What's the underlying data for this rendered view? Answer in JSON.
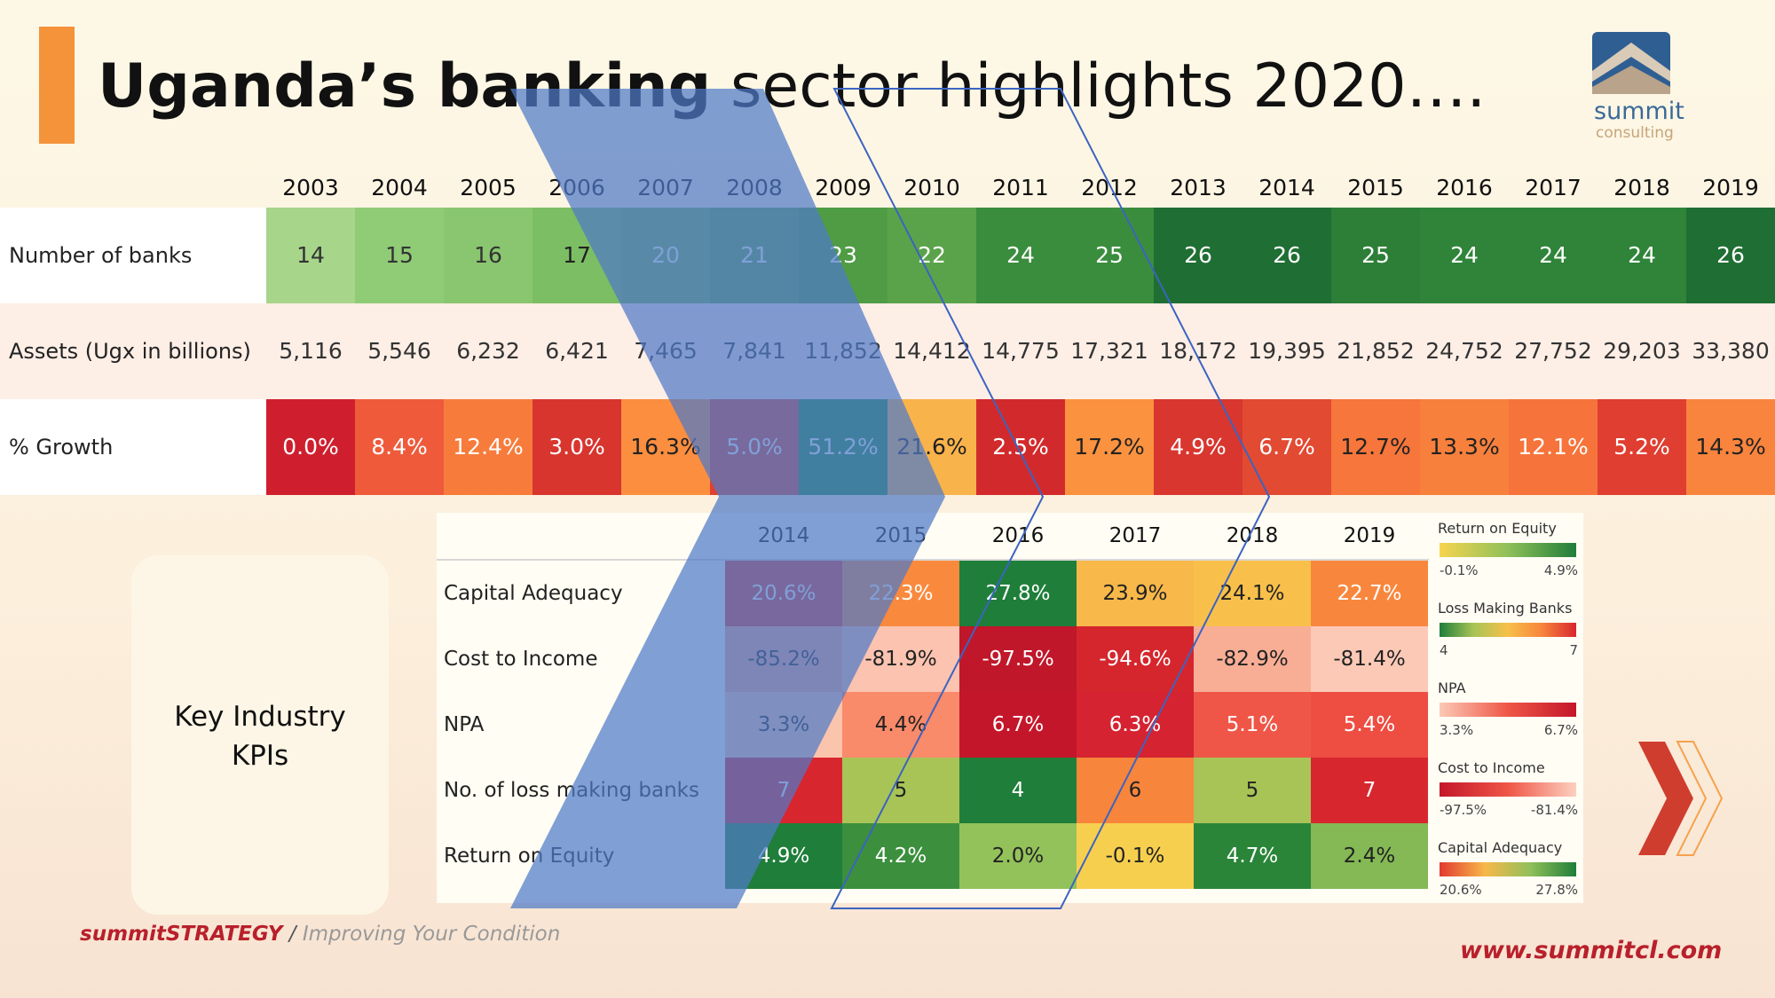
{
  "title": {
    "bold": "Uganda’s banking",
    "regular": " sector highlights 2020…."
  },
  "logo": {
    "word": "summit",
    "sub": "consulting"
  },
  "top_table": {
    "years": [
      "2003",
      "2004",
      "2005",
      "2006",
      "2007",
      "2008",
      "2009",
      "2010",
      "2011",
      "2012",
      "2013",
      "2014",
      "2015",
      "2016",
      "2017",
      "2018",
      "2019"
    ],
    "rows": [
      {
        "label": "Number of banks",
        "values": [
          "14",
          "15",
          "16",
          "17",
          "20",
          "21",
          "23",
          "22",
          "24",
          "25",
          "26",
          "26",
          "25",
          "24",
          "24",
          "24",
          "26"
        ],
        "colors": [
          "#a7d58a",
          "#90cb76",
          "#8ac66f",
          "#7cbe63",
          "#6fb257",
          "#5ea64d",
          "#4f9c45",
          "#5aa34a",
          "#3a8d3d",
          "#3a8d3d",
          "#1f6e33",
          "#1f6e33",
          "#2d7f38",
          "#2f8439",
          "#2f8439",
          "#2f8439",
          "#1f6e33"
        ],
        "text_colors": [
          "#333",
          "#333",
          "#333",
          "#222",
          "#fff",
          "#fff",
          "#fff",
          "#fff",
          "#fff",
          "#fff",
          "#fff",
          "#fff",
          "#fff",
          "#fff",
          "#fff",
          "#fff",
          "#fff"
        ]
      },
      {
        "label": "Assets (Ugx in billions)",
        "values": [
          "5,116",
          "5,546",
          "6,232",
          "6,421",
          "7,465",
          "7,841",
          "11,852",
          "14,412",
          "14,775",
          "17,321",
          "18,172",
          "19,395",
          "21,852",
          "24,752",
          "27,752",
          "29,203",
          "33,380"
        ]
      },
      {
        "label": "% Growth",
        "values": [
          "0.0%",
          "8.4%",
          "12.4%",
          "3.0%",
          "16.3%",
          "5.0%",
          "51.2%",
          "21.6%",
          "2.5%",
          "17.2%",
          "4.9%",
          "6.7%",
          "12.7%",
          "13.3%",
          "12.1%",
          "5.2%",
          "14.3%"
        ],
        "colors": [
          "#cf1f2e",
          "#ef5a3b",
          "#f77c3c",
          "#d8352f",
          "#fb8e3f",
          "#e0402f",
          "#1a8e3c",
          "#f9b34b",
          "#d22a2c",
          "#fa923f",
          "#d8362f",
          "#e24a32",
          "#f6763b",
          "#f7803c",
          "#f6743b",
          "#df3e30",
          "#f8843d"
        ],
        "text_colors": [
          "#fff",
          "#fff",
          "#fff",
          "#fff",
          "#222",
          "#fff",
          "#fff",
          "#222",
          "#fff",
          "#222",
          "#fff",
          "#fff",
          "#222",
          "#222",
          "#fff",
          "#fff",
          "#222"
        ]
      }
    ]
  },
  "kpi": {
    "years": [
      "2014",
      "2015",
      "2016",
      "2017",
      "2018",
      "2019"
    ],
    "rows": [
      {
        "label": "Capital Adequacy",
        "values": [
          "20.6%",
          "22.3%",
          "27.8%",
          "23.9%",
          "24.1%",
          "22.7%"
        ],
        "colors": [
          "#e13a2f",
          "#f98a3d",
          "#1f7e3a",
          "#f8b84a",
          "#f8c04b",
          "#f8873d"
        ],
        "text_colors": [
          "#fff",
          "#fff",
          "#fff",
          "#222",
          "#222",
          "#fff"
        ]
      },
      {
        "label": "Cost to Income",
        "values": [
          "-85.2%",
          "-81.9%",
          "-97.5%",
          "-94.6%",
          "-82.9%",
          "-81.4%"
        ],
        "colors": [
          "#f6a58c",
          "#fbc3b0",
          "#c0172a",
          "#d5262d",
          "#f8ae95",
          "#fcc9b7"
        ],
        "text_colors": [
          "#222",
          "#222",
          "#fff",
          "#fff",
          "#222",
          "#222"
        ]
      },
      {
        "label": "NPA",
        "values": [
          "3.3%",
          "4.4%",
          "6.7%",
          "6.3%",
          "5.1%",
          "5.4%"
        ],
        "colors": [
          "#fbc4ad",
          "#f98a6a",
          "#c4162a",
          "#d52331",
          "#ef5647",
          "#ee4d42"
        ],
        "text_colors": [
          "#222",
          "#222",
          "#fff",
          "#fff",
          "#fff",
          "#fff"
        ]
      },
      {
        "label": "No. of loss making banks",
        "values": [
          "7",
          "5",
          "4",
          "6",
          "5",
          "7"
        ],
        "colors": [
          "#d8262f",
          "#a8c457",
          "#1f7e3a",
          "#f7853c",
          "#a8c457",
          "#d8262f"
        ],
        "text_colors": [
          "#fff",
          "#222",
          "#fff",
          "#222",
          "#222",
          "#fff"
        ]
      },
      {
        "label": "Return on Equity",
        "values": [
          "4.9%",
          "4.2%",
          "2.0%",
          "-0.1%",
          "4.7%",
          "2.4%"
        ],
        "colors": [
          "#1f7e3a",
          "#3b8f3d",
          "#93c25b",
          "#f7cf4f",
          "#2a8539",
          "#84b955"
        ],
        "text_colors": [
          "#fff",
          "#fff",
          "#222",
          "#222",
          "#fff",
          "#222"
        ]
      }
    ]
  },
  "key_text": [
    "Key Industry",
    "KPIs"
  ],
  "legend": [
    {
      "title": "Return on Equity",
      "min": "-0.1%",
      "max": "4.9%"
    },
    {
      "title": "Loss Making Banks",
      "min": "4",
      "max": "7"
    },
    {
      "title": "NPA",
      "min": "3.3%",
      "max": "6.7%"
    },
    {
      "title": "Cost to Income",
      "min": "-97.5%",
      "max": "-81.4%"
    },
    {
      "title": "Capital Adequacy",
      "min": "20.6%",
      "max": "27.8%"
    }
  ],
  "footer": {
    "brand": "summitSTRATEGY",
    "slash": " / ",
    "tagline": "Improving Your Condition",
    "url": "www.summitcl.com"
  },
  "colors": {
    "accent": "#f5933a",
    "brand_red": "#b8202b",
    "chevron_blue": "#4f7ac8"
  }
}
